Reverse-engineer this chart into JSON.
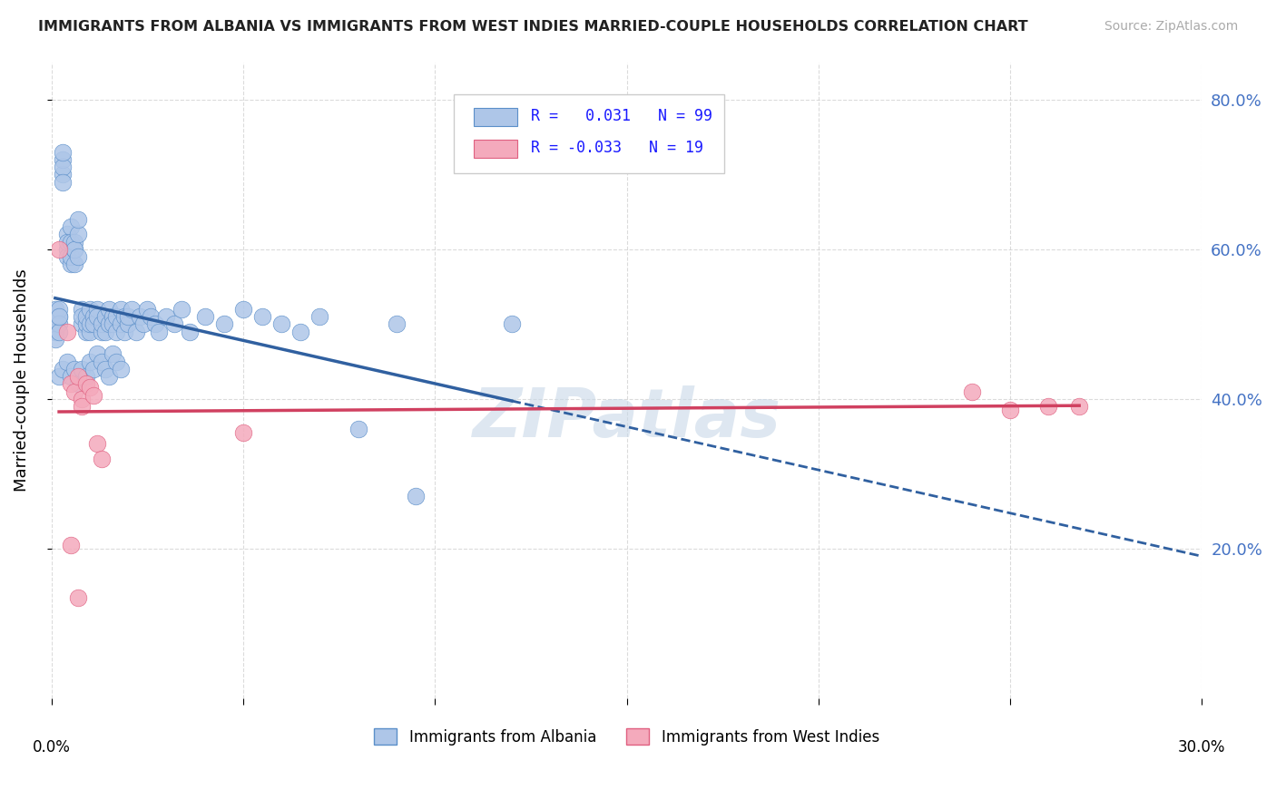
{
  "title": "IMMIGRANTS FROM ALBANIA VS IMMIGRANTS FROM WEST INDIES MARRIED-COUPLE HOUSEHOLDS CORRELATION CHART",
  "source": "Source: ZipAtlas.com",
  "ylabel": "Married-couple Households",
  "xlim": [
    0.0,
    0.3
  ],
  "ylim": [
    0.0,
    0.85
  ],
  "yticks": [
    0.2,
    0.4,
    0.6,
    0.8
  ],
  "ytick_labels": [
    "20.0%",
    "40.0%",
    "60.0%",
    "80.0%"
  ],
  "blue_R": 0.031,
  "blue_N": 99,
  "pink_R": -0.033,
  "pink_N": 19,
  "blue_color": "#aec6e8",
  "pink_color": "#f4aabc",
  "blue_edge": "#5b8fc9",
  "pink_edge": "#e06080",
  "trend_blue": "#3060a0",
  "trend_pink": "#d04060",
  "watermark": "ZIPatlas",
  "watermark_color": "#c8d8e8",
  "legend_label_blue": "Immigrants from Albania",
  "legend_label_pink": "Immigrants from West Indies",
  "blue_scatter_x": [
    0.001,
    0.001,
    0.001,
    0.001,
    0.001,
    0.002,
    0.002,
    0.002,
    0.002,
    0.002,
    0.003,
    0.003,
    0.003,
    0.003,
    0.003,
    0.004,
    0.004,
    0.004,
    0.004,
    0.005,
    0.005,
    0.005,
    0.005,
    0.006,
    0.006,
    0.006,
    0.006,
    0.007,
    0.007,
    0.007,
    0.008,
    0.008,
    0.008,
    0.009,
    0.009,
    0.009,
    0.01,
    0.01,
    0.01,
    0.011,
    0.011,
    0.012,
    0.012,
    0.013,
    0.013,
    0.014,
    0.014,
    0.015,
    0.015,
    0.016,
    0.016,
    0.017,
    0.017,
    0.018,
    0.018,
    0.019,
    0.019,
    0.02,
    0.02,
    0.021,
    0.022,
    0.023,
    0.024,
    0.025,
    0.026,
    0.027,
    0.028,
    0.03,
    0.032,
    0.034,
    0.036,
    0.04,
    0.045,
    0.05,
    0.055,
    0.06,
    0.065,
    0.07,
    0.08,
    0.09,
    0.002,
    0.003,
    0.004,
    0.005,
    0.006,
    0.007,
    0.008,
    0.009,
    0.01,
    0.011,
    0.012,
    0.013,
    0.014,
    0.015,
    0.016,
    0.017,
    0.018,
    0.095,
    0.12
  ],
  "blue_scatter_y": [
    0.5,
    0.51,
    0.52,
    0.49,
    0.48,
    0.51,
    0.52,
    0.5,
    0.49,
    0.51,
    0.7,
    0.72,
    0.71,
    0.69,
    0.73,
    0.6,
    0.62,
    0.59,
    0.61,
    0.58,
    0.63,
    0.61,
    0.59,
    0.6,
    0.58,
    0.61,
    0.6,
    0.59,
    0.62,
    0.64,
    0.5,
    0.52,
    0.51,
    0.49,
    0.5,
    0.51,
    0.49,
    0.5,
    0.52,
    0.51,
    0.5,
    0.52,
    0.51,
    0.49,
    0.5,
    0.51,
    0.49,
    0.5,
    0.52,
    0.51,
    0.5,
    0.49,
    0.51,
    0.5,
    0.52,
    0.51,
    0.49,
    0.5,
    0.51,
    0.52,
    0.49,
    0.51,
    0.5,
    0.52,
    0.51,
    0.5,
    0.49,
    0.51,
    0.5,
    0.52,
    0.49,
    0.51,
    0.5,
    0.52,
    0.51,
    0.5,
    0.49,
    0.51,
    0.36,
    0.5,
    0.43,
    0.44,
    0.45,
    0.43,
    0.44,
    0.42,
    0.44,
    0.43,
    0.45,
    0.44,
    0.46,
    0.45,
    0.44,
    0.43,
    0.46,
    0.45,
    0.44,
    0.27,
    0.5
  ],
  "pink_scatter_x": [
    0.002,
    0.004,
    0.005,
    0.005,
    0.006,
    0.007,
    0.007,
    0.008,
    0.008,
    0.009,
    0.01,
    0.011,
    0.012,
    0.013,
    0.05,
    0.24,
    0.25,
    0.26,
    0.268
  ],
  "pink_scatter_y": [
    0.6,
    0.49,
    0.42,
    0.205,
    0.41,
    0.43,
    0.135,
    0.4,
    0.39,
    0.42,
    0.415,
    0.405,
    0.34,
    0.32,
    0.355,
    0.41,
    0.385,
    0.39,
    0.39
  ]
}
